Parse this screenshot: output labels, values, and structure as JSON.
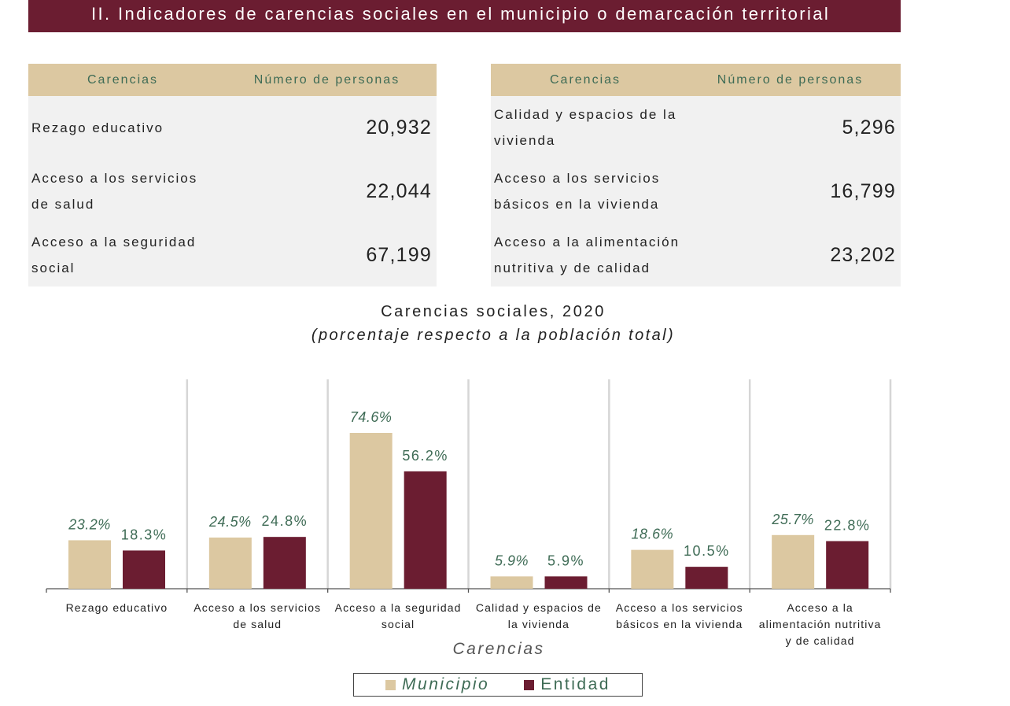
{
  "section_title": "II. Indicadores de carencias sociales en el municipio o demarcación territorial",
  "colors": {
    "municipio": "#dcc8a1",
    "entidad": "#6b1d31",
    "header_bg": "#6b1d31",
    "table_header_bg": "#dcc8a1",
    "label_text": "#3e6b55"
  },
  "tables": [
    {
      "headers": [
        "Carencias",
        "Número de personas"
      ],
      "rows": [
        {
          "label": [
            "Rezago educativo"
          ],
          "value": "20,932"
        },
        {
          "label": [
            "Acceso a los servicios",
            "de salud"
          ],
          "value": "22,044"
        },
        {
          "label": [
            "Acceso a la seguridad",
            "social"
          ],
          "value": "67,199"
        }
      ]
    },
    {
      "headers": [
        "Carencias",
        "Número de personas"
      ],
      "rows": [
        {
          "label": [
            "Calidad y espacios de la",
            "vivienda"
          ],
          "value": "5,296"
        },
        {
          "label": [
            "Acceso a los servicios",
            "básicos en la vivienda"
          ],
          "value": "16,799"
        },
        {
          "label": [
            "Acceso a la alimentación",
            "nutritiva y de calidad"
          ],
          "value": "23,202"
        }
      ]
    }
  ],
  "chart_data": {
    "type": "bar",
    "title": "Carencias sociales, 2020",
    "subtitle": "(porcentaje respecto a la población total)",
    "xlabel": "Carencias",
    "ylabel": "",
    "ylim": [
      0,
      80
    ],
    "grid": false,
    "legend_position": "bottom",
    "categories": [
      [
        "Rezago educativo"
      ],
      [
        "Acceso a los servicios",
        "de salud"
      ],
      [
        "Acceso a la seguridad",
        "social"
      ],
      [
        "Calidad y espacios de",
        "la vivienda"
      ],
      [
        "Acceso a los servicios",
        "básicos en la vivienda"
      ],
      [
        "Acceso a la",
        "alimentación nutritiva",
        "y de calidad"
      ]
    ],
    "series": [
      {
        "name": "Municipio",
        "values": [
          23.2,
          24.5,
          74.6,
          5.9,
          18.6,
          25.7
        ],
        "labels": [
          "23.2%",
          "24.5%",
          "74.6%",
          "5.9%",
          "18.6%",
          "25.7%"
        ]
      },
      {
        "name": "Entidad",
        "values": [
          18.3,
          24.8,
          56.2,
          5.9,
          10.5,
          22.8
        ],
        "labels": [
          "18.3%",
          "24.8%",
          "56.2%",
          "5.9%",
          "10.5%",
          "22.8%"
        ]
      }
    ]
  }
}
